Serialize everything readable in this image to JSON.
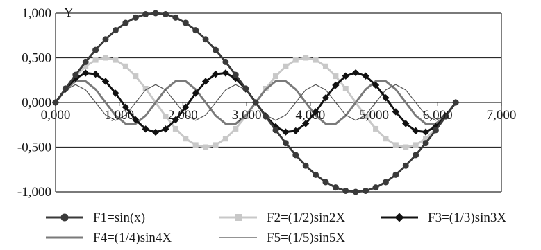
{
  "chart_data": {
    "type": "line",
    "ylabel": "Y",
    "xlabel": "",
    "xlim": [
      0,
      7
    ],
    "ylim": [
      -1,
      1
    ],
    "x_ticks": [
      "0,000",
      "1,000",
      "2,000",
      "3,000",
      "4,000",
      "5,000",
      "6,000",
      "7,000"
    ],
    "y_ticks": [
      "1,000",
      "0,500",
      "0,000",
      "-0,500",
      "-1,000"
    ],
    "x_tick_values": [
      0,
      1,
      2,
      3,
      4,
      5,
      6,
      7
    ],
    "y_tick_values": [
      1,
      0.5,
      0,
      -0.5,
      -1
    ],
    "grid": "horizontal",
    "legend_position": "bottom",
    "x": [
      0.0,
      0.157,
      0.314,
      0.471,
      0.628,
      0.785,
      0.942,
      1.1,
      1.257,
      1.414,
      1.571,
      1.728,
      1.885,
      2.042,
      2.199,
      2.356,
      2.513,
      2.67,
      2.827,
      2.985,
      3.142,
      3.299,
      3.456,
      3.613,
      3.77,
      3.927,
      4.084,
      4.241,
      4.398,
      4.555,
      4.712,
      4.869,
      5.027,
      5.184,
      5.341,
      5.498,
      5.655,
      5.812,
      5.969,
      6.126,
      6.283
    ],
    "series": [
      {
        "name": "F1=sin(x)",
        "color": "#3a3a3a",
        "marker": "circle",
        "values": [
          0.0,
          0.156,
          0.309,
          0.454,
          0.588,
          0.707,
          0.809,
          0.891,
          0.951,
          0.988,
          1.0,
          0.988,
          0.951,
          0.891,
          0.809,
          0.707,
          0.588,
          0.454,
          0.309,
          0.156,
          0.0,
          -0.156,
          -0.309,
          -0.454,
          -0.588,
          -0.707,
          -0.809,
          -0.891,
          -0.951,
          -0.988,
          -1.0,
          -0.988,
          -0.951,
          -0.891,
          -0.809,
          -0.707,
          -0.588,
          -0.454,
          -0.309,
          -0.156,
          0.0
        ]
      },
      {
        "name": "F2=(1/2)sin2X",
        "color": "#c8c8c8",
        "marker": "square",
        "values": [
          0.0,
          0.155,
          0.294,
          0.405,
          0.476,
          0.5,
          0.476,
          0.405,
          0.294,
          0.155,
          0.0,
          -0.155,
          -0.294,
          -0.405,
          -0.476,
          -0.5,
          -0.476,
          -0.405,
          -0.294,
          -0.155,
          0.0,
          0.155,
          0.294,
          0.405,
          0.476,
          0.5,
          0.476,
          0.405,
          0.294,
          0.155,
          0.0,
          -0.155,
          -0.294,
          -0.405,
          -0.476,
          -0.5,
          -0.476,
          -0.405,
          -0.294,
          -0.155,
          0.0
        ]
      },
      {
        "name": "F3=(1/3)sin3X",
        "color": "#111111",
        "marker": "diamond",
        "values": [
          0.0,
          0.151,
          0.27,
          0.33,
          0.317,
          0.236,
          0.104,
          -0.052,
          -0.194,
          -0.297,
          -0.333,
          -0.297,
          -0.194,
          -0.052,
          0.104,
          0.236,
          0.317,
          0.33,
          0.27,
          0.151,
          0.0,
          -0.151,
          -0.27,
          -0.33,
          -0.317,
          -0.236,
          -0.104,
          0.052,
          0.194,
          0.297,
          0.333,
          0.297,
          0.194,
          0.052,
          -0.104,
          -0.236,
          -0.317,
          -0.33,
          -0.27,
          -0.151,
          0.0
        ]
      },
      {
        "name": "F4=(1/4)sin4X",
        "color": "#7a7a7a",
        "marker": "none",
        "values": [
          0.0,
          0.147,
          0.238,
          0.238,
          0.147,
          0.0,
          -0.147,
          -0.238,
          -0.238,
          -0.147,
          0.0,
          0.147,
          0.238,
          0.238,
          0.147,
          0.0,
          -0.147,
          -0.238,
          -0.238,
          -0.147,
          0.0,
          0.147,
          0.238,
          0.238,
          0.147,
          0.0,
          -0.147,
          -0.238,
          -0.238,
          -0.147,
          0.0,
          0.147,
          0.238,
          0.238,
          0.147,
          0.0,
          -0.147,
          -0.238,
          -0.238,
          -0.147,
          0.0
        ]
      },
      {
        "name": "F5=(1/5)sin5X",
        "color": "#555555",
        "marker": "none",
        "values": [
          0.0,
          0.141,
          0.2,
          0.141,
          0.0,
          -0.141,
          -0.2,
          -0.141,
          0.0,
          0.141,
          0.2,
          0.141,
          0.0,
          -0.141,
          -0.2,
          -0.141,
          0.0,
          0.141,
          0.2,
          0.141,
          0.0,
          -0.141,
          -0.2,
          -0.141,
          0.0,
          0.141,
          0.2,
          0.141,
          0.0,
          -0.141,
          -0.2,
          -0.141,
          0.0,
          0.141,
          0.2,
          0.141,
          0.0,
          -0.141,
          -0.2,
          -0.141,
          0.0
        ]
      }
    ]
  }
}
